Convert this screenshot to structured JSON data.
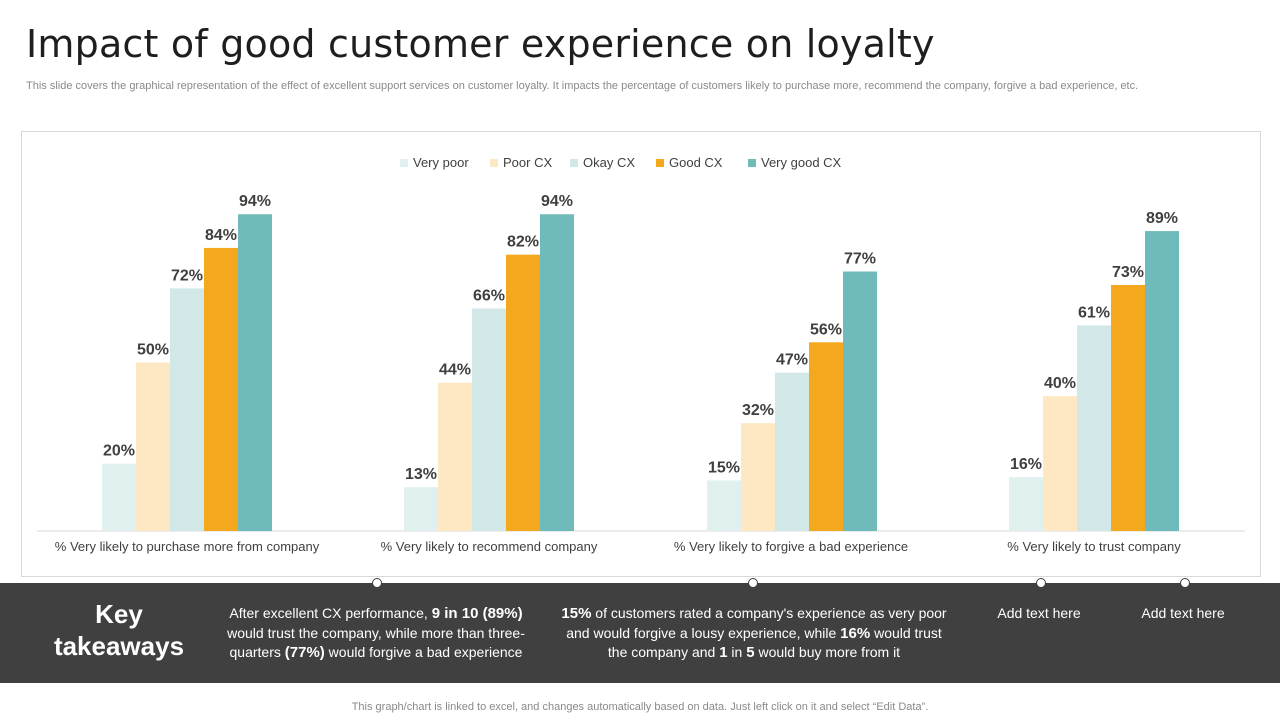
{
  "header": {
    "title": "Impact of good customer experience on loyalty",
    "subtitle": "This slide covers the graphical representation of the effect of excellent support services on customer loyalty. It impacts the percentage of customers likely to purchase more, recommend the company, forgive a bad experience, etc."
  },
  "chart_data": {
    "type": "bar",
    "categories": [
      "% Very likely to purchase more from company",
      "% Very likely to recommend company",
      "% Very likely to forgive a bad experience",
      "% Very likely to trust company"
    ],
    "series": [
      {
        "name": "Very poor",
        "color": "#dff0ef",
        "values": [
          20,
          13,
          15,
          16
        ]
      },
      {
        "name": "Poor CX",
        "color": "#fde8c3",
        "values": [
          50,
          44,
          32,
          40
        ]
      },
      {
        "name": "Okay CX",
        "color": "#d2e8e8",
        "values": [
          72,
          66,
          47,
          61
        ]
      },
      {
        "name": "Good CX",
        "color": "#f4a81d",
        "values": [
          84,
          82,
          56,
          73
        ]
      },
      {
        "name": "Very good CX",
        "color": "#6fbaba",
        "values": [
          94,
          94,
          77,
          89
        ]
      }
    ],
    "value_suffix": "%",
    "ylim": [
      0,
      100
    ],
    "legend": "top-center",
    "grid": false
  },
  "takeaways": {
    "heading_line1": "Key",
    "heading_line2": "takeaways",
    "t1": {
      "p1": "After excellent CX performance, ",
      "b1": "9 in 10 (89%)",
      "p2": " would trust the company, while more than three-quarters ",
      "b2": "(77%)",
      "p3": " would forgive a bad experience"
    },
    "t2": {
      "b1": "15%",
      "p1": " of customers rated a company's experience as very poor and would forgive a lousy experience, while ",
      "b2": "16%",
      "p2": " would trust the company and ",
      "b3": "1",
      "p3": " in ",
      "b4": "5",
      "p4": " would buy more from it"
    },
    "t3": "Add text here",
    "t4": "Add text here"
  },
  "footer": {
    "note": "This graph/chart is linked to excel, and changes automatically based on data. Just left click on it and select “Edit Data”."
  }
}
